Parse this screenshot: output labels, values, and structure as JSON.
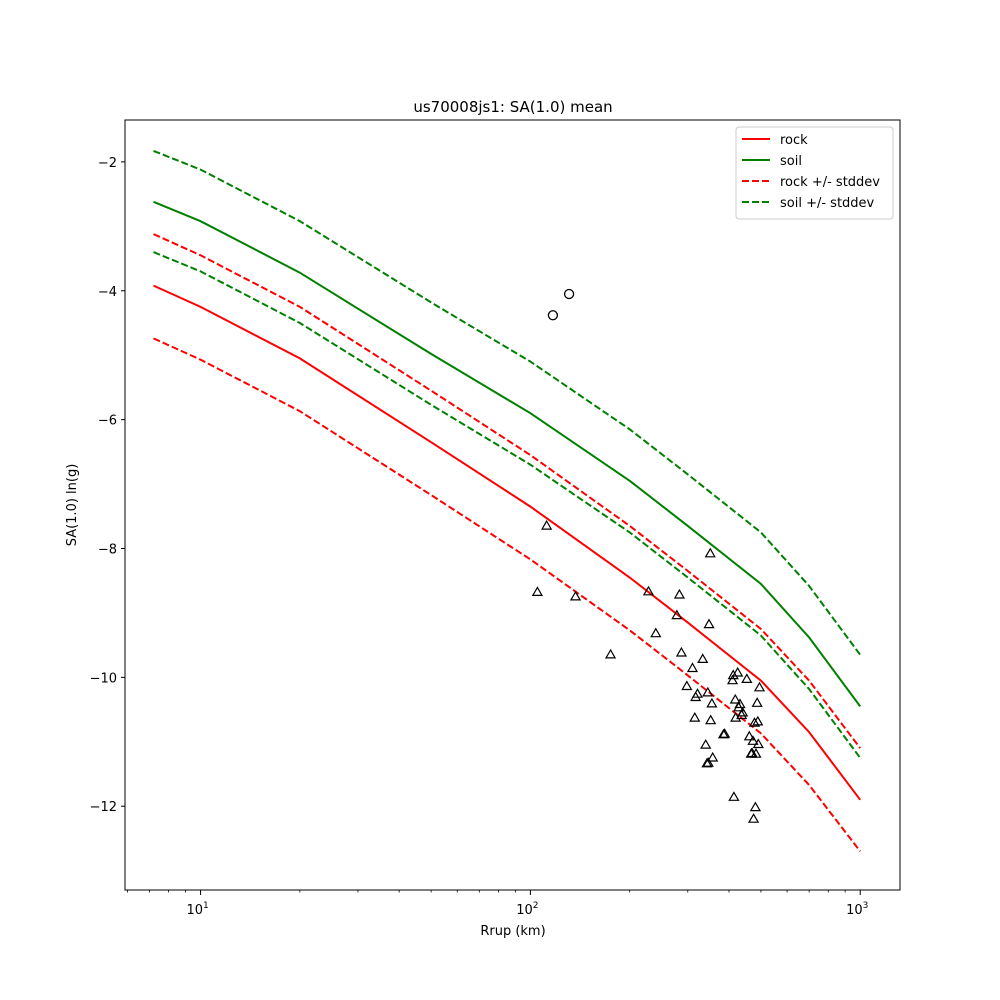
{
  "chart_data": {
    "type": "line",
    "title": "us70008js1: SA(1.0) mean",
    "xlabel": "Rrup (km)",
    "ylabel": "SA(1.0) ln(g)",
    "xscale": "log",
    "xlim": [
      5.9,
      1320
    ],
    "ylim": [
      -13.3,
      -1.35
    ],
    "xticks": [
      {
        "value": 10,
        "base": "10",
        "exp": "1"
      },
      {
        "value": 100,
        "base": "10",
        "exp": "2"
      },
      {
        "value": 1000,
        "base": "10",
        "exp": "3"
      }
    ],
    "yticks": [
      {
        "value": -2,
        "label": "−2"
      },
      {
        "value": -4,
        "label": "−4"
      },
      {
        "value": -6,
        "label": "−6"
      },
      {
        "value": -8,
        "label": "−8"
      },
      {
        "value": -10,
        "label": "−10"
      },
      {
        "value": -12,
        "label": "−12"
      }
    ],
    "grid": false,
    "legend_position": "top-right",
    "series": [
      {
        "name": "rock",
        "color": "#ff0000",
        "style": "solid",
        "x": [
          7.2,
          10,
          20,
          50,
          100,
          200,
          300,
          500,
          700,
          1000
        ],
        "y": [
          -3.92,
          -4.25,
          -5.05,
          -6.35,
          -7.35,
          -8.45,
          -9.15,
          -10.05,
          -10.85,
          -11.9
        ]
      },
      {
        "name": "soil",
        "color": "#008000",
        "style": "solid",
        "x": [
          7.2,
          10,
          20,
          50,
          100,
          200,
          300,
          500,
          700,
          1000
        ],
        "y": [
          -2.62,
          -2.92,
          -3.72,
          -4.98,
          -5.9,
          -6.95,
          -7.65,
          -8.55,
          -9.38,
          -10.45
        ]
      },
      {
        "name": "rock +/- stddev",
        "color": "#ff0000",
        "style": "dashed",
        "x": [
          7.2,
          10,
          20,
          50,
          100,
          200,
          300,
          500,
          700,
          1000
        ],
        "y": [
          -3.12,
          -3.45,
          -4.25,
          -5.55,
          -6.55,
          -7.65,
          -8.35,
          -9.25,
          -10.05,
          -11.1
        ]
      },
      {
        "name": "",
        "color": "#ff0000",
        "style": "dashed",
        "x": [
          7.2,
          10,
          20,
          50,
          100,
          200,
          300,
          500,
          700,
          1000
        ],
        "y": [
          -4.74,
          -5.07,
          -5.87,
          -7.17,
          -8.17,
          -9.27,
          -9.97,
          -10.87,
          -11.67,
          -12.7
        ]
      },
      {
        "name": "soil +/- stddev",
        "color": "#008000",
        "style": "dashed",
        "x": [
          7.2,
          10,
          20,
          50,
          100,
          200,
          300,
          500,
          700,
          1000
        ],
        "y": [
          -1.83,
          -2.12,
          -2.92,
          -4.18,
          -5.1,
          -6.15,
          -6.85,
          -7.75,
          -8.58,
          -9.65
        ]
      },
      {
        "name": "",
        "color": "#008000",
        "style": "dashed",
        "x": [
          7.2,
          10,
          20,
          50,
          100,
          200,
          300,
          500,
          700,
          1000
        ],
        "y": [
          -3.4,
          -3.7,
          -4.5,
          -5.77,
          -6.7,
          -7.75,
          -8.45,
          -9.35,
          -10.18,
          -11.25
        ]
      }
    ],
    "circle_points": [
      {
        "x": 117,
        "y": -4.38
      },
      {
        "x": 131,
        "y": -4.05
      }
    ],
    "triangle_points": [
      {
        "x": 105,
        "y": -8.68
      },
      {
        "x": 112,
        "y": -7.65
      },
      {
        "x": 137,
        "y": -8.75
      },
      {
        "x": 175,
        "y": -9.65
      },
      {
        "x": 228,
        "y": -8.67
      },
      {
        "x": 240,
        "y": -9.32
      },
      {
        "x": 278,
        "y": -9.04
      },
      {
        "x": 283,
        "y": -8.72
      },
      {
        "x": 287,
        "y": -9.62
      },
      {
        "x": 298,
        "y": -10.14
      },
      {
        "x": 310,
        "y": -9.86
      },
      {
        "x": 315,
        "y": -10.63
      },
      {
        "x": 317,
        "y": -10.31
      },
      {
        "x": 321,
        "y": -10.26
      },
      {
        "x": 333,
        "y": -9.72
      },
      {
        "x": 340,
        "y": -11.05
      },
      {
        "x": 343,
        "y": -11.34
      },
      {
        "x": 345,
        "y": -10.24
      },
      {
        "x": 346,
        "y": -11.33
      },
      {
        "x": 348,
        "y": -9.18
      },
      {
        "x": 351,
        "y": -8.08
      },
      {
        "x": 352,
        "y": -10.67
      },
      {
        "x": 355,
        "y": -10.41
      },
      {
        "x": 357,
        "y": -11.25
      },
      {
        "x": 385,
        "y": -10.89
      },
      {
        "x": 388,
        "y": -10.88
      },
      {
        "x": 410,
        "y": -10.05
      },
      {
        "x": 412,
        "y": -9.97
      },
      {
        "x": 414,
        "y": -11.86
      },
      {
        "x": 418,
        "y": -10.35
      },
      {
        "x": 419,
        "y": -10.63
      },
      {
        "x": 425,
        "y": -9.93
      },
      {
        "x": 428,
        "y": -10.47
      },
      {
        "x": 432,
        "y": -10.42
      },
      {
        "x": 437,
        "y": -10.59
      },
      {
        "x": 440,
        "y": -10.55
      },
      {
        "x": 453,
        "y": -10.03
      },
      {
        "x": 461,
        "y": -10.92
      },
      {
        "x": 467,
        "y": -11.19
      },
      {
        "x": 470,
        "y": -11.18
      },
      {
        "x": 473,
        "y": -10.99
      },
      {
        "x": 475,
        "y": -12.2
      },
      {
        "x": 478,
        "y": -10.71
      },
      {
        "x": 481,
        "y": -12.02
      },
      {
        "x": 483,
        "y": -11.19
      },
      {
        "x": 487,
        "y": -10.4
      },
      {
        "x": 489,
        "y": -10.69
      },
      {
        "x": 491,
        "y": -11.04
      },
      {
        "x": 495,
        "y": -10.16
      }
    ]
  }
}
